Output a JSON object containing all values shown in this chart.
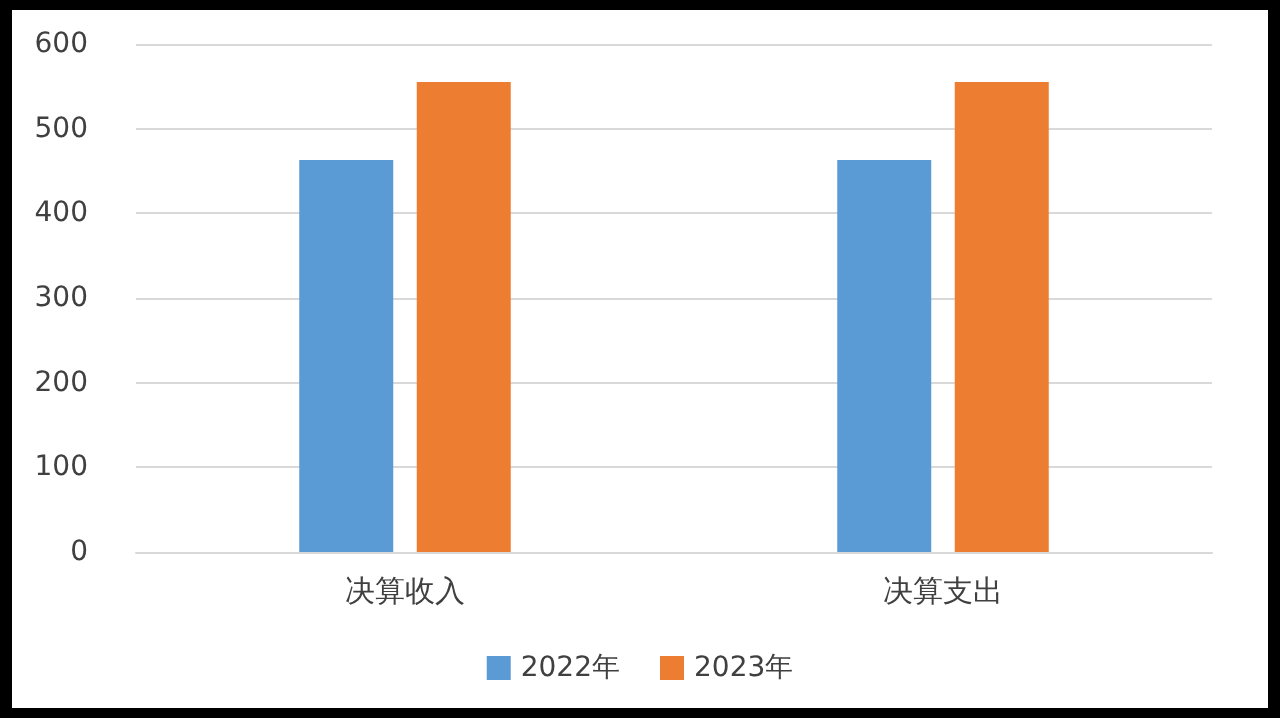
{
  "chart_data": {
    "type": "bar",
    "categories": [
      "决算收入",
      "决算支出"
    ],
    "series": [
      {
        "name": "2022年",
        "color": "#5b9bd5",
        "values": [
          463,
          463
        ]
      },
      {
        "name": "2023年",
        "color": "#ed7d31",
        "values": [
          555,
          555
        ]
      }
    ],
    "ylim": [
      0,
      600
    ],
    "yticks": [
      0,
      100,
      200,
      300,
      400,
      500,
      600
    ],
    "grid": "y",
    "legend": "bottom"
  }
}
